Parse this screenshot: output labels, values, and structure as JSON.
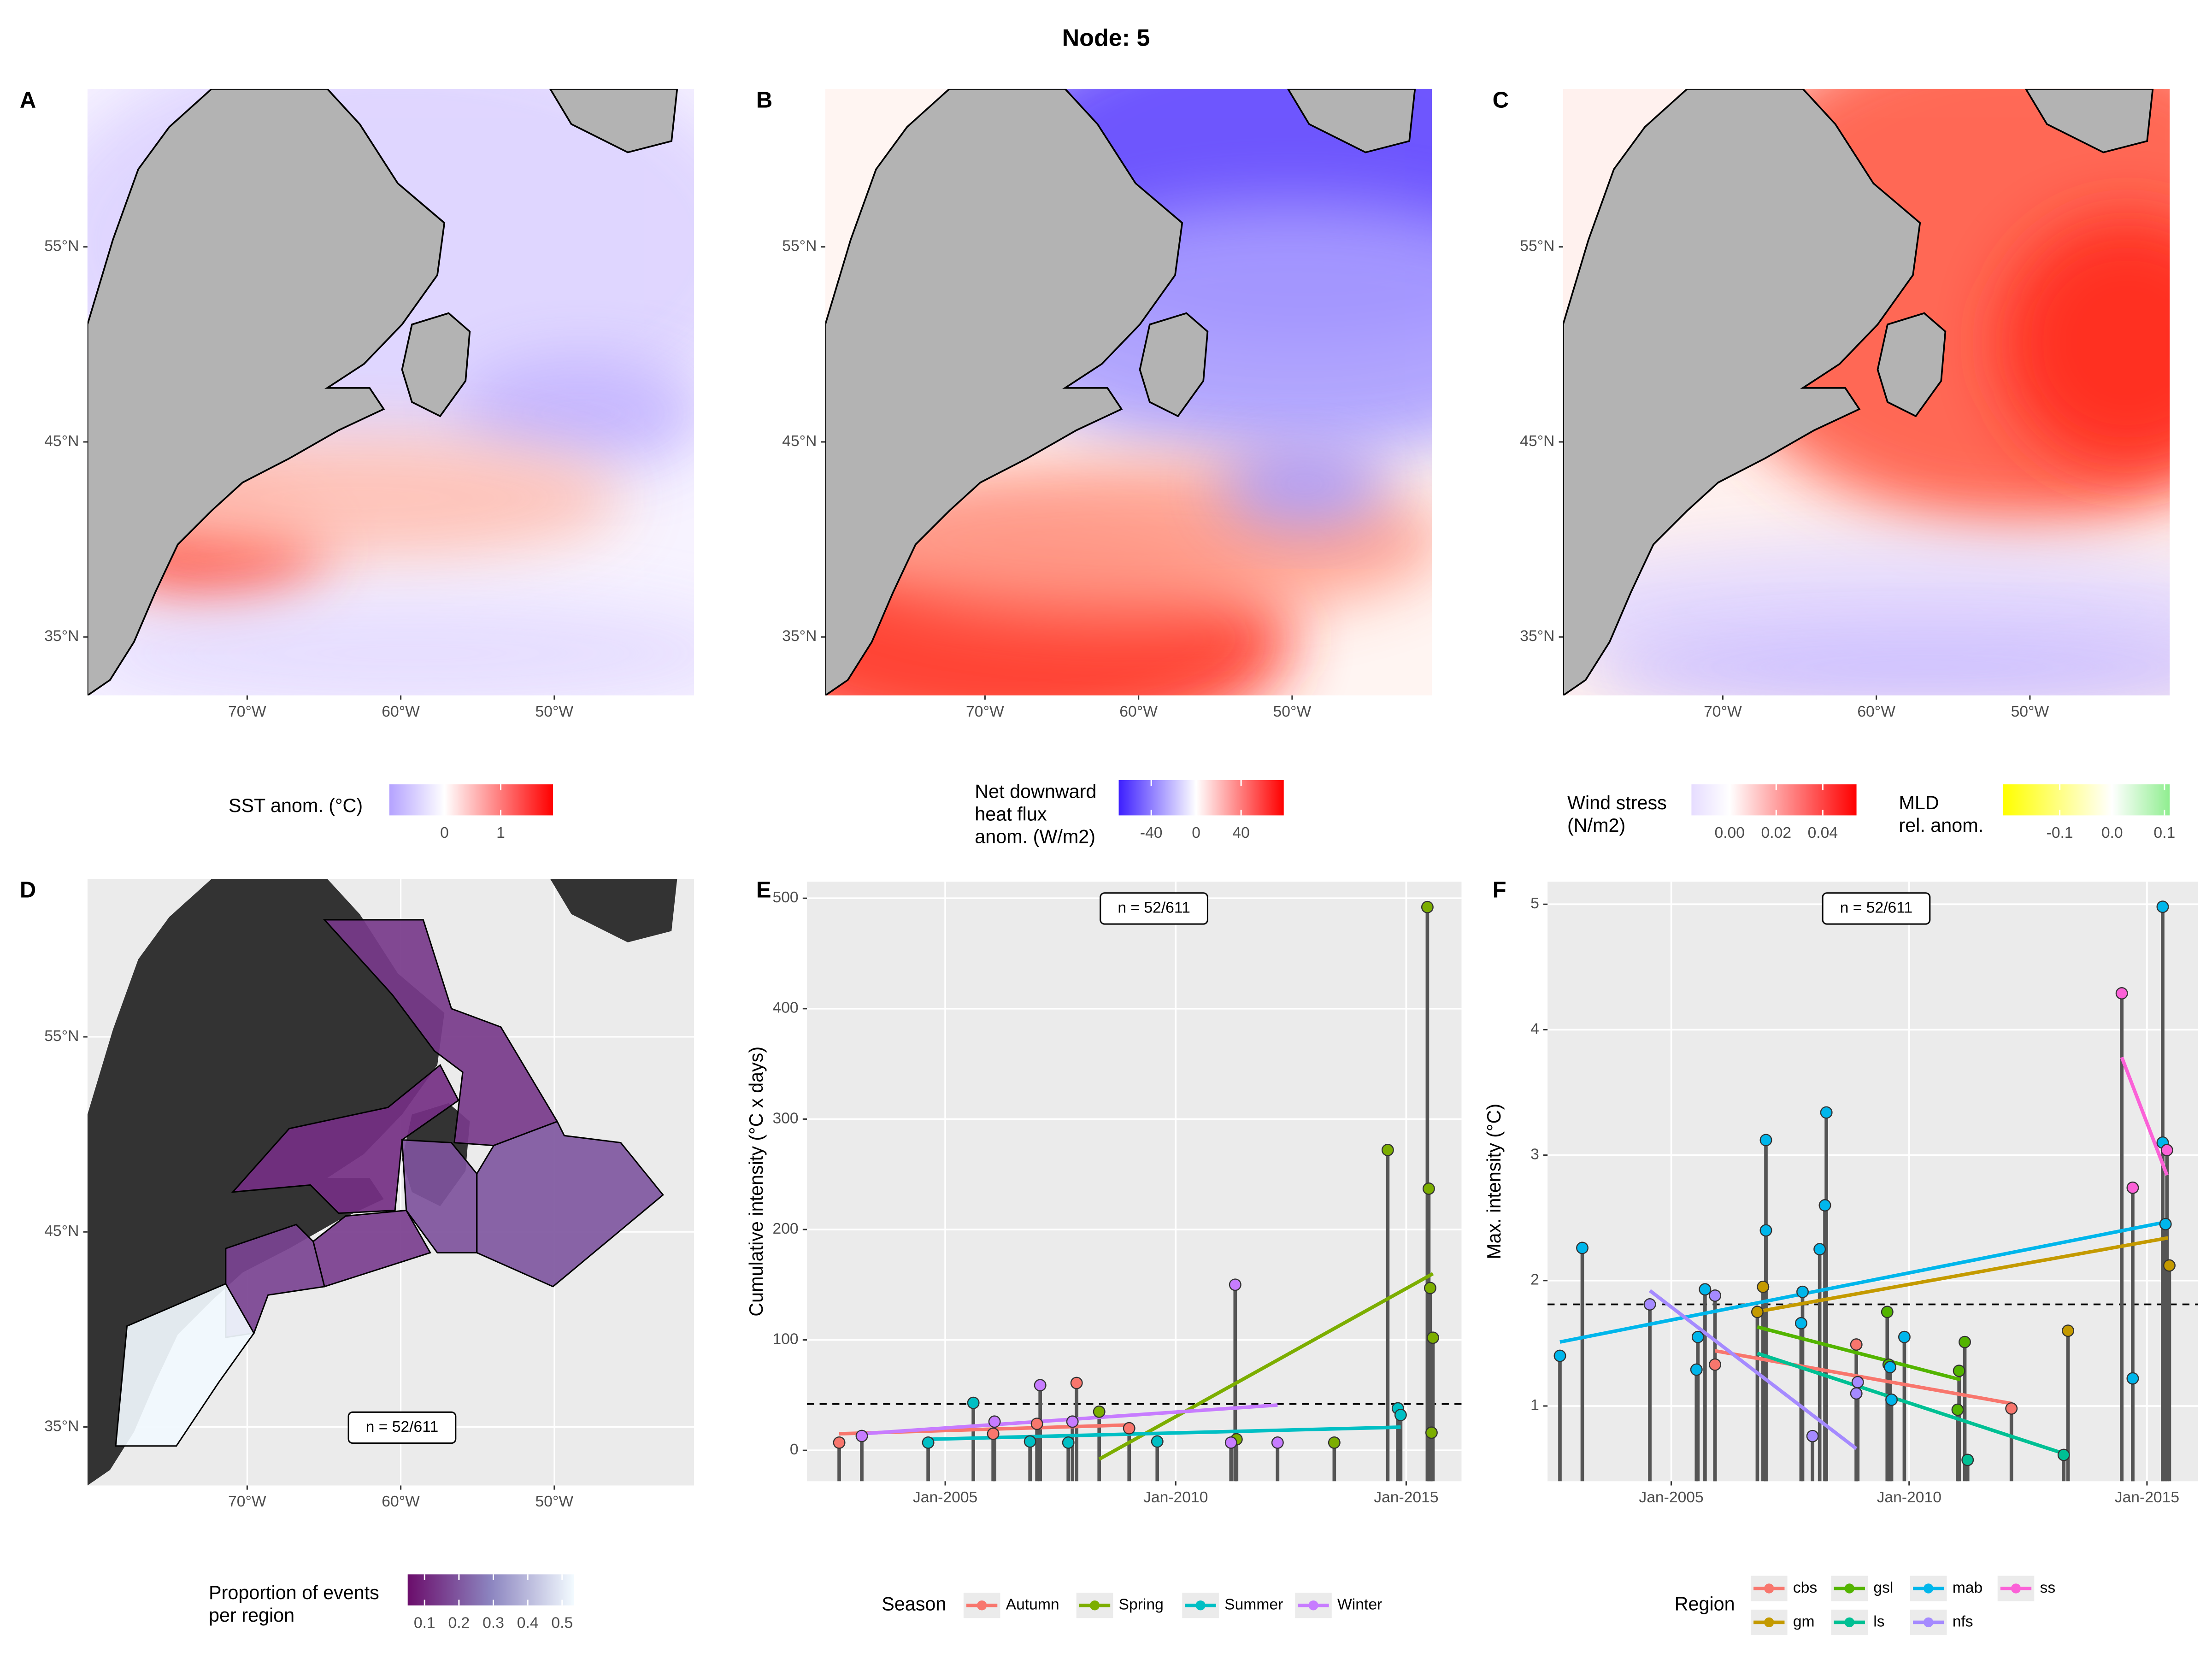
{
  "title": "Node: 5",
  "chart_data": [
    {
      "type": "map",
      "label": "A",
      "xlim": [
        -80.4,
        -40.9
      ],
      "ylim": [
        32,
        63.1
      ],
      "xticks": [
        {
          "value": -70,
          "label": "70°W"
        },
        {
          "value": -60,
          "label": "60°W"
        },
        {
          "value": -50,
          "label": "50°W"
        }
      ],
      "yticks": [
        {
          "value": 35,
          "label": "35°N"
        },
        {
          "value": 45,
          "label": "45°N"
        },
        {
          "value": 55,
          "label": "55°N"
        }
      ],
      "legends": [
        {
          "title": [
            "SST anom. (°C)"
          ],
          "lim": [
            -0.98,
            1.93
          ],
          "midpoint": 0,
          "ticks": [
            0,
            1
          ],
          "colors": [
            "#b4a2ff",
            "#ffffff",
            "#ff0000"
          ]
        }
      ]
    },
    {
      "type": "map",
      "label": "B",
      "xlim": [
        -80.4,
        -40.9
      ],
      "ylim": [
        32,
        63.1
      ],
      "xticks": [
        {
          "value": -70,
          "label": "70°W"
        },
        {
          "value": -60,
          "label": "60°W"
        },
        {
          "value": -50,
          "label": "50°W"
        }
      ],
      "yticks": [
        {
          "value": 35,
          "label": "35°N"
        },
        {
          "value": 45,
          "label": "45°N"
        },
        {
          "value": 55,
          "label": "55°N"
        }
      ],
      "legends": [
        {
          "title": [
            "Net downward",
            "heat flux",
            "anom. (W/m2)"
          ],
          "lim": [
            -69,
            78
          ],
          "midpoint": 0,
          "ticks": [
            -40,
            0,
            40
          ],
          "colors": [
            "#3d1fff",
            "#ffffff",
            "#ff0000"
          ]
        }
      ]
    },
    {
      "type": "map",
      "label": "C",
      "xlim": [
        -80.4,
        -40.9
      ],
      "ylim": [
        32,
        63.1
      ],
      "xticks": [
        {
          "value": -70,
          "label": "70°W"
        },
        {
          "value": -60,
          "label": "60°W"
        },
        {
          "value": -50,
          "label": "50°W"
        }
      ],
      "yticks": [
        {
          "value": 35,
          "label": "35°N"
        },
        {
          "value": 45,
          "label": "45°N"
        },
        {
          "value": 55,
          "label": "55°N"
        }
      ],
      "legends": [
        {
          "title": [
            "Wind stress",
            "(N/m2)"
          ],
          "lim": [
            -0.0164,
            0.0545
          ],
          "midpoint": 0,
          "ticks": [
            {
              "value": 0,
              "label": "0.00"
            },
            {
              "value": 0.02,
              "label": "0.02"
            },
            {
              "value": 0.04,
              "label": "0.04"
            }
          ],
          "colors": [
            "#e6dcff",
            "#ffffff",
            "#ff0000"
          ]
        },
        {
          "title": [
            "MLD",
            "rel. anom."
          ],
          "lim": [
            -0.208,
            0.11
          ],
          "midpoint": 0,
          "ticks": [
            -0.1,
            {
              "value": 0,
              "label": "0.0"
            },
            0.1
          ],
          "colors": [
            "#ffff00",
            "#ffffff",
            "#90ee90"
          ]
        }
      ]
    },
    {
      "type": "map",
      "label": "D",
      "xlim": [
        -80.4,
        -40.9
      ],
      "ylim": [
        32,
        63.1
      ],
      "grid": true,
      "xticks": [
        {
          "value": -70,
          "label": "70°W"
        },
        {
          "value": -60,
          "label": "60°W"
        },
        {
          "value": -50,
          "label": "50°W"
        }
      ],
      "yticks": [
        {
          "value": 35,
          "label": "35°N"
        },
        {
          "value": 45,
          "label": "45°N"
        },
        {
          "value": 55,
          "label": "55°N"
        }
      ],
      "region_values": [
        0.14,
        0.2,
        0.12,
        0.19,
        0.15,
        0.16,
        0.53
      ],
      "annotation": "n = 52/611",
      "legends": [
        {
          "title": [
            "Proportion of events",
            "per region"
          ],
          "lim": [
            0.051,
            0.535
          ],
          "ticks": [
            0.1,
            0.2,
            0.3,
            0.4,
            0.5
          ],
          "colors": [
            "#6b0d6b",
            "#8c85c0",
            "#f3fbff"
          ]
        }
      ]
    },
    {
      "type": "lollipop",
      "label": "E",
      "ylabel": "Cumulative intensity (°C x days)",
      "annotation": "n = 52/611",
      "legend_title": "Season",
      "grid": true,
      "xlim": [
        2002.0,
        2016.2
      ],
      "ylim": [
        -28,
        515
      ],
      "xticks": [
        {
          "value": 2005,
          "label": "Jan-2005"
        },
        {
          "value": 2010,
          "label": "Jan-2010"
        },
        {
          "value": 2015,
          "label": "Jan-2015"
        }
      ],
      "yticks": [
        0,
        100,
        200,
        300,
        400,
        500
      ],
      "hline": 42,
      "series": [
        {
          "name": "Autumn",
          "color": "#F8766D",
          "x": [
            2002.7,
            2006.04,
            2006.99,
            2007.85,
            2008.99
          ],
          "values": [
            7,
            15,
            24,
            61,
            20
          ],
          "trend": {
            "x": [
              2002.7,
              2008.99
            ],
            "values": [
              15,
              23
            ]
          }
        },
        {
          "name": "Spring",
          "color": "#7CAE00",
          "x": [
            2008.34,
            2011.32,
            2013.44,
            2014.6,
            2015.46,
            2015.49,
            2015.52,
            2015.55,
            2015.58
          ],
          "values": [
            35,
            10,
            7,
            272,
            492,
            237,
            147,
            16,
            102
          ],
          "trend": {
            "x": [
              2008.34,
              2015.58
            ],
            "values": [
              -8,
              160
            ]
          }
        },
        {
          "name": "Summer",
          "color": "#00BFC4",
          "x": [
            2004.63,
            2005.61,
            2006.84,
            2007.67,
            2009.6,
            2014.82,
            2014.88
          ],
          "values": [
            7,
            43,
            8,
            7,
            8,
            38,
            32
          ],
          "trend": {
            "x": [
              2004.63,
              2014.88
            ],
            "values": [
              10,
              21
            ]
          }
        },
        {
          "name": "Winter",
          "color": "#C77CFF",
          "x": [
            2003.19,
            2006.07,
            2007.06,
            2007.76,
            2011.2,
            2011.29,
            2012.21
          ],
          "values": [
            13,
            26,
            59,
            26,
            7,
            150,
            7
          ],
          "trend": {
            "x": [
              2003.19,
              2012.21
            ],
            "values": [
              15,
              41
            ]
          }
        }
      ]
    },
    {
      "type": "lollipop",
      "label": "F",
      "ylabel": "Max. intensity (°C)",
      "annotation": "n = 52/611",
      "legend_title": "Region",
      "grid": true,
      "xlim": [
        2002.4,
        2016.07
      ],
      "ylim": [
        0.4,
        5.18
      ],
      "xticks": [
        {
          "value": 2005,
          "label": "Jan-2005"
        },
        {
          "value": 2010,
          "label": "Jan-2010"
        },
        {
          "value": 2015,
          "label": "Jan-2015"
        }
      ],
      "yticks": [
        1,
        2,
        3,
        4,
        5
      ],
      "hline": 1.81,
      "series": [
        {
          "name": "cbs",
          "color": "#F8766D",
          "x": [
            2005.92,
            2008.89,
            2012.15
          ],
          "values": [
            1.33,
            1.49,
            0.98
          ],
          "trend": {
            "x": [
              2005.92,
              2012.15
            ],
            "values": [
              1.44,
              1.02
            ]
          }
        },
        {
          "name": "gm",
          "color": "#C49A00",
          "x": [
            2006.81,
            2006.93,
            2013.34,
            2015.47
          ],
          "values": [
            1.75,
            1.95,
            1.6,
            2.12
          ],
          "trend": {
            "x": [
              2006.78,
              2015.44
            ],
            "values": [
              1.75,
              2.34
            ]
          }
        },
        {
          "name": "gsl",
          "color": "#53B400",
          "x": [
            2009.54,
            2009.57,
            2011.02,
            2011.05,
            2011.17
          ],
          "values": [
            1.75,
            1.33,
            0.97,
            1.28,
            1.51
          ],
          "trend": {
            "x": [
              2006.81,
              2011.08
            ],
            "values": [
              1.63,
              1.21
            ]
          }
        },
        {
          "name": "ls",
          "color": "#00C094",
          "x": [
            2011.23,
            2013.25
          ],
          "values": [
            0.57,
            0.61
          ],
          "trend": {
            "x": [
              2006.81,
              2013.34
            ],
            "values": [
              1.42,
              0.61
            ]
          }
        },
        {
          "name": "mab",
          "color": "#00B6EB",
          "x": [
            2002.66,
            2003.13,
            2005.53,
            2005.56,
            2005.71,
            2006.99,
            2006.99,
            2007.73,
            2007.76,
            2008.12,
            2008.23,
            2008.26,
            2009.6,
            2009.63,
            2009.9,
            2014.7,
            2015.33,
            2015.33,
            2015.39
          ],
          "values": [
            1.4,
            2.26,
            1.29,
            1.55,
            1.93,
            3.12,
            2.4,
            1.66,
            1.91,
            2.25,
            2.6,
            3.34,
            1.31,
            1.05,
            1.55,
            1.22,
            4.98,
            3.1,
            2.45
          ],
          "trend": {
            "x": [
              2002.66,
              2015.44
            ],
            "values": [
              1.51,
              2.47
            ]
          }
        },
        {
          "name": "nfs",
          "color": "#A58AFF",
          "x": [
            2004.55,
            2005.92,
            2007.97,
            2008.89,
            2008.92
          ],
          "values": [
            1.81,
            1.88,
            0.76,
            1.1,
            1.19
          ],
          "trend": {
            "x": [
              2004.55,
              2008.89
            ],
            "values": [
              1.92,
              0.66
            ]
          }
        },
        {
          "name": "ss",
          "color": "#FB61D7",
          "x": [
            2014.47,
            2014.7,
            2015.42
          ],
          "values": [
            4.29,
            2.74,
            3.04
          ],
          "trend": {
            "x": [
              2014.47,
              2015.42
            ],
            "values": [
              3.78,
              2.84
            ]
          }
        }
      ]
    }
  ]
}
